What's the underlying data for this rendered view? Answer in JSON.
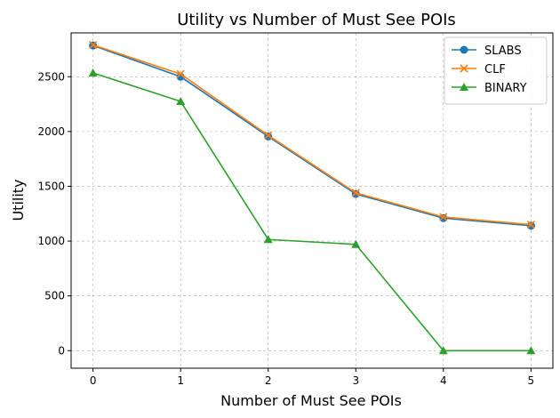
{
  "chart_data": {
    "type": "line",
    "title": "Utility vs Number of Must See POIs",
    "xlabel": "Number of Must See POIs",
    "ylabel": "Utility",
    "x": [
      0,
      1,
      2,
      3,
      4,
      5
    ],
    "xlim": [
      -0.25,
      5.25
    ],
    "ylim": [
      -160,
      2900
    ],
    "xticks": [
      0,
      1,
      2,
      3,
      4,
      5
    ],
    "yticks": [
      0,
      500,
      1000,
      1500,
      2000,
      2500
    ],
    "grid": true,
    "legend_position": "top-right",
    "series": [
      {
        "name": "SLABS",
        "color": "#1f77b4",
        "marker": "circle",
        "values": [
          2785,
          2500,
          1955,
          1430,
          1210,
          1140
        ]
      },
      {
        "name": "CLF",
        "color": "#ff7f0e",
        "marker": "x",
        "values": [
          2790,
          2525,
          1965,
          1440,
          1220,
          1150
        ]
      },
      {
        "name": "BINARY",
        "color": "#2ca02c",
        "marker": "triangle",
        "values": [
          2535,
          2275,
          1015,
          970,
          0,
          0
        ]
      }
    ]
  }
}
